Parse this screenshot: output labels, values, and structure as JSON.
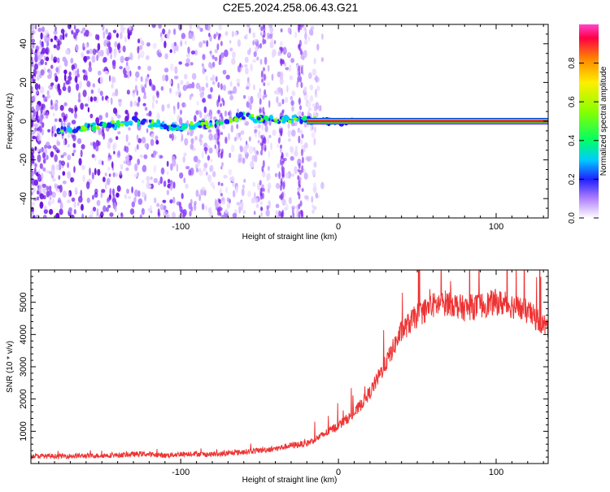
{
  "title": "C2E5.2024.258.06.43.G21",
  "chart_data": [
    {
      "type": "heatmap",
      "xlabel": "Height of straight line (km)",
      "ylabel": "Frequency (Hz)",
      "xlim": [
        -195,
        133
      ],
      "ylim": [
        -50,
        50
      ],
      "xticks": [
        -100,
        0,
        100
      ],
      "yticks": [
        -40,
        -20,
        0,
        20,
        40
      ],
      "colorbar": {
        "label": "Normalized spectral amplitude",
        "range": [
          0,
          1
        ],
        "ticks": [
          "0.0",
          "0.2",
          "0.4",
          "0.6",
          "0.8"
        ]
      },
      "carrier_track": {
        "x_start": -20,
        "x_end": 133,
        "frequency": 0
      },
      "signal_path": [
        {
          "x": -178,
          "f": -5
        },
        {
          "x": -145,
          "f": -2
        },
        {
          "x": -130,
          "f": 0
        },
        {
          "x": -103,
          "f": -3
        },
        {
          "x": -85,
          "f": -2
        },
        {
          "x": -72,
          "f": 0
        },
        {
          "x": -60,
          "f": 3
        },
        {
          "x": -50,
          "f": 1
        },
        {
          "x": -40,
          "f": 1
        },
        {
          "x": -25,
          "f": 1
        },
        {
          "x": -10,
          "f": 0
        },
        {
          "x": 0,
          "f": 0
        },
        {
          "x": 10,
          "f": 0
        }
      ]
    },
    {
      "type": "line",
      "xlabel": "Height of straight line (km)",
      "ylabel": "SNR (10 * v/v)",
      "xlim": [
        -195,
        133
      ],
      "ylim": [
        0,
        6000
      ],
      "xticks": [
        -100,
        0,
        100
      ],
      "yticks": [
        1000,
        2000,
        3000,
        4000,
        5000
      ],
      "color": "#ee3333",
      "series": [
        {
          "x": [
            -195,
            -180,
            -160,
            -140,
            -125,
            -110,
            -100,
            -92,
            -85,
            -75,
            -60,
            -40,
            -30,
            -20,
            -10,
            0,
            10,
            20,
            30,
            40,
            50,
            60,
            70,
            80,
            90,
            100,
            110,
            120,
            133
          ],
          "values": [
            230,
            230,
            240,
            260,
            300,
            250,
            290,
            310,
            280,
            290,
            360,
            460,
            560,
            620,
            880,
            1180,
            1550,
            2200,
            3100,
            4100,
            4600,
            4900,
            5000,
            4800,
            4900,
            5000,
            4900,
            4700,
            4200
          ]
        }
      ]
    }
  ]
}
